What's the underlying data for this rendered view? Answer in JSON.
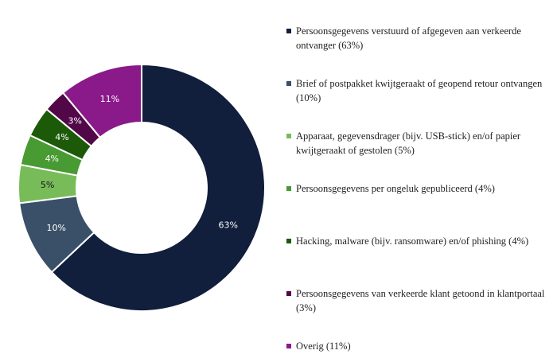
{
  "chart_data": {
    "type": "pie",
    "variant": "donut",
    "title": "",
    "legend_placement": "right",
    "slices": [
      {
        "label": "63%",
        "value": 63,
        "color": "#111e3c",
        "label_color": "#ffffff",
        "legend": "Persoonsgegevens verstuurd of afgegeven aan verkeerde ontvanger (63%)"
      },
      {
        "label": "10%",
        "value": 10,
        "color": "#3a5068",
        "label_color": "#ffffff",
        "legend": "Brief of postpakket kwijtgeraakt of geopend retour ontvangen (10%)"
      },
      {
        "label": "5%",
        "value": 5,
        "color": "#78bc5a",
        "label_color": "#111111",
        "legend": "Apparaat, gegevensdrager (bijv. USB-stick) en/of papier kwijtgeraakt of gestolen (5%)"
      },
      {
        "label": "4%",
        "value": 4,
        "color": "#489a32",
        "label_color": "#ffffff",
        "legend": "Persoonsgegevens per ongeluk gepubliceerd (4%)"
      },
      {
        "label": "4%",
        "value": 4,
        "color": "#1c5a0a",
        "label_color": "#ffffff",
        "legend": "Hacking, malware (bijv. ransomware) en/of phishing (4%)"
      },
      {
        "label": "3%",
        "value": 3,
        "color": "#520848",
        "label_color": "#ffffff",
        "legend": "Persoonsgegevens van verkeerde klant getoond in klantportaal (3%)"
      },
      {
        "label": "11%",
        "value": 11,
        "color": "#8a1a8a",
        "label_color": "#ffffff",
        "legend": "Overig (11%)"
      }
    ]
  }
}
